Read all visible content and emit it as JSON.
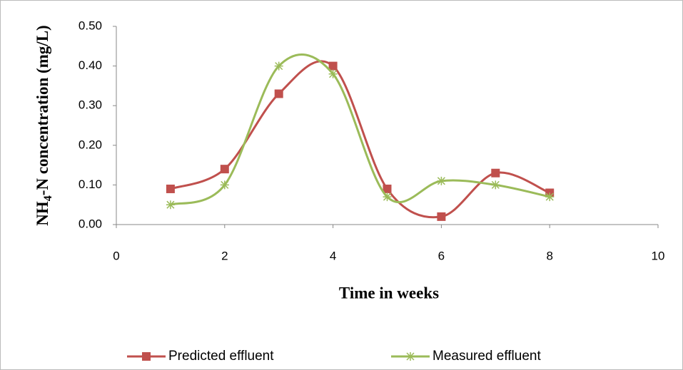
{
  "chart_data": {
    "type": "line",
    "x_label": "Time in weeks",
    "y_label": [
      "NH",
      "4",
      "-N concentration (mg/L)"
    ],
    "x": [
      1,
      2,
      3,
      4,
      5,
      6,
      7,
      8
    ],
    "series": [
      {
        "name": "Predicted effluent",
        "color": "#c0504d",
        "marker": "square",
        "values": [
          0.09,
          0.14,
          0.33,
          0.4,
          0.09,
          0.02,
          0.13,
          0.08
        ]
      },
      {
        "name": "Measured effluent",
        "color": "#9bbb59",
        "marker": "star",
        "values": [
          0.05,
          0.1,
          0.4,
          0.38,
          0.07,
          0.11,
          0.1,
          0.07
        ]
      }
    ],
    "xlim": [
      0,
      10
    ],
    "xticks": [
      0,
      2,
      4,
      6,
      8,
      10
    ],
    "ylim": [
      0,
      0.5
    ],
    "yticks": [
      {
        "value": 0,
        "label": "0.00"
      },
      {
        "value": 0.1,
        "label": "0.10"
      },
      {
        "value": 0.2,
        "label": "0.20"
      },
      {
        "value": 0.3,
        "label": "0.30"
      },
      {
        "value": 0.4,
        "label": "0.40"
      },
      {
        "value": 0.5,
        "label": "0.50"
      }
    ],
    "smooth": true,
    "grid": false,
    "legend": "bottom"
  }
}
